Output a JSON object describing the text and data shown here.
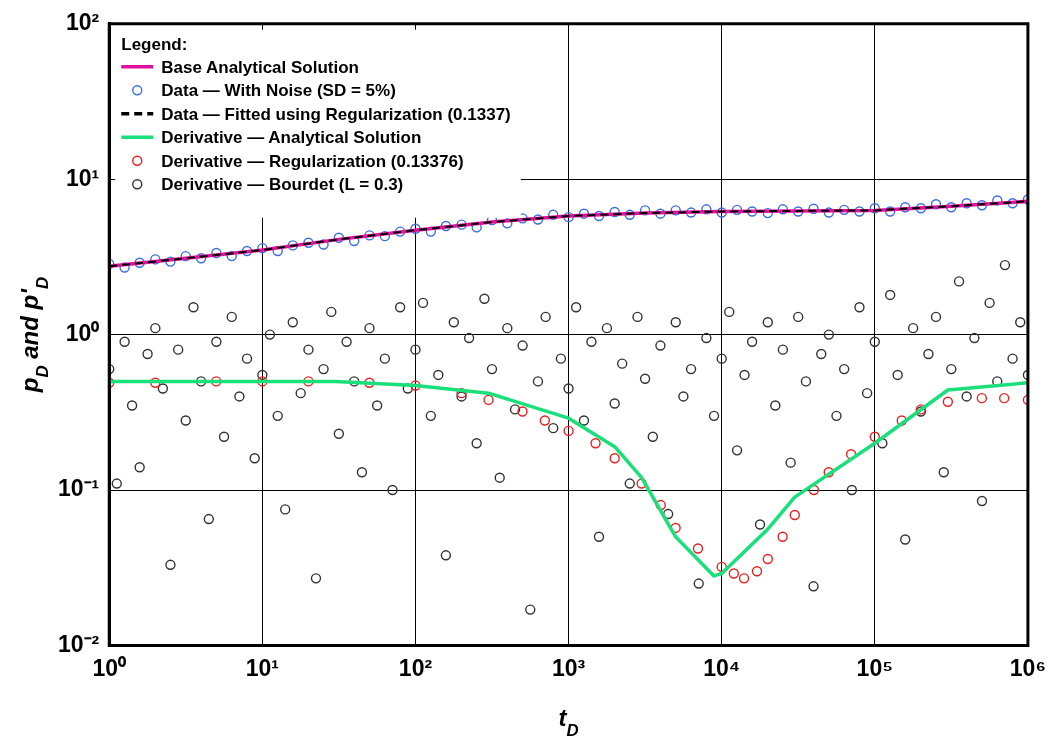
{
  "chart_data": {
    "type": "scatter",
    "xlabel": "t$_{D}$",
    "ylabel": "p$_{D}$ and p'$_{D}$",
    "legend_title": "Legend:",
    "log": "xy",
    "grid": true,
    "legend": "top left",
    "xlim": [
      1,
      1000000
    ],
    "ylim": [
      0.01,
      100
    ],
    "xticks": [
      {
        "value": 1,
        "label": "10⁰"
      },
      {
        "value": 10,
        "label": "10¹"
      },
      {
        "value": 100,
        "label": "10²"
      },
      {
        "value": 1000,
        "label": "10³"
      },
      {
        "value": 10000,
        "label": "10⁴"
      },
      {
        "value": 100000,
        "label": "10⁵"
      },
      {
        "value": 1000000,
        "label": "10⁶"
      }
    ],
    "yticks": [
      {
        "value": 0.01,
        "label": "10⁻²"
      },
      {
        "value": 0.1,
        "label": "10⁻¹"
      },
      {
        "value": 1,
        "label": "10⁰"
      },
      {
        "value": 10,
        "label": "10¹"
      },
      {
        "value": 100,
        "label": "10²"
      }
    ],
    "series": [
      {
        "name": "Base Analytical Solution",
        "type": "line",
        "color": "#e0119e",
        "x": [
          1,
          3.16,
          10,
          31.6,
          100,
          316,
          1000,
          3160,
          10000,
          31600,
          100000,
          316000,
          1000000
        ],
        "values": [
          2.75,
          3.1,
          3.5,
          4.1,
          4.7,
          5.3,
          5.8,
          6.05,
          6.2,
          6.25,
          6.3,
          6.7,
          7.2
        ]
      },
      {
        "name": "Data — With Noise (SD = 5%)",
        "marker": "circle",
        "color": "#3a6fe0",
        "x": [
          1,
          1.26,
          1.58,
          2,
          2.51,
          3.16,
          3.98,
          5.01,
          6.31,
          7.94,
          10,
          12.6,
          15.8,
          20,
          25.1,
          31.6,
          39.8,
          50.1,
          63.1,
          79.4,
          100,
          126,
          158,
          200,
          251,
          316,
          398,
          501,
          631,
          794,
          1000,
          1260,
          1580,
          2000,
          2510,
          3160,
          3980,
          5010,
          6310,
          7940,
          10000,
          12600,
          15800,
          20000,
          25100,
          31600,
          39800,
          50100,
          63100,
          79400,
          100000,
          126000,
          158000,
          200000,
          251000,
          316000,
          398000,
          501000,
          631000,
          794000,
          1000000
        ],
        "values": [
          2.85,
          2.7,
          2.9,
          3.05,
          2.95,
          3.2,
          3.1,
          3.35,
          3.2,
          3.45,
          3.6,
          3.45,
          3.75,
          3.9,
          3.8,
          4.2,
          4.0,
          4.35,
          4.3,
          4.6,
          4.8,
          4.6,
          5.0,
          5.1,
          4.9,
          5.45,
          5.2,
          5.6,
          5.5,
          5.9,
          5.7,
          6.0,
          5.8,
          6.15,
          5.9,
          6.3,
          6.0,
          6.3,
          6.1,
          6.4,
          6.1,
          6.35,
          6.2,
          6.05,
          6.4,
          6.2,
          6.45,
          6.1,
          6.35,
          6.2,
          6.5,
          6.2,
          6.6,
          6.5,
          6.9,
          6.6,
          7.0,
          6.8,
          7.3,
          7.0,
          7.4
        ]
      },
      {
        "name": "Data — Fitted using Regularization (0.1337)",
        "type": "line",
        "line_style": "dashed",
        "color": "#000000",
        "x": [
          1,
          3.16,
          10,
          31.6,
          100,
          316,
          1000,
          3160,
          10000,
          31600,
          100000,
          316000,
          1000000
        ],
        "values": [
          2.75,
          3.1,
          3.5,
          4.1,
          4.7,
          5.3,
          5.8,
          6.05,
          6.2,
          6.25,
          6.3,
          6.7,
          7.2
        ]
      },
      {
        "name": "Derivative — Analytical Solution",
        "type": "line",
        "color": "#19e07a",
        "x": [
          1,
          10,
          30,
          100,
          300,
          1000,
          2000,
          3000,
          5000,
          8900,
          10000,
          20000,
          30000,
          100000,
          300000,
          1000000
        ],
        "values": [
          0.5,
          0.5,
          0.5,
          0.47,
          0.42,
          0.29,
          0.19,
          0.12,
          0.05,
          0.028,
          0.029,
          0.056,
          0.09,
          0.2,
          0.44,
          0.49
        ]
      },
      {
        "name": "Derivative — Regularization (0.13376)",
        "marker": "circle",
        "color": "#e8211e",
        "x": [
          1,
          2,
          5,
          10,
          20,
          50,
          100,
          200,
          300,
          500,
          700,
          1000,
          1500,
          2000,
          3000,
          4000,
          5000,
          7000,
          10000,
          12000,
          14000,
          17000,
          20000,
          25000,
          30000,
          40000,
          50000,
          70000,
          100000,
          150000,
          200000,
          300000,
          500000,
          700000,
          1000000
        ],
        "values": [
          0.49,
          0.49,
          0.5,
          0.5,
          0.5,
          0.49,
          0.47,
          0.42,
          0.38,
          0.32,
          0.28,
          0.24,
          0.2,
          0.16,
          0.11,
          0.08,
          0.057,
          0.042,
          0.032,
          0.029,
          0.027,
          0.03,
          0.036,
          0.05,
          0.069,
          0.1,
          0.13,
          0.17,
          0.22,
          0.28,
          0.33,
          0.37,
          0.39,
          0.39,
          0.38
        ]
      },
      {
        "name": "Derivative — Bourdet (L = 0.3)",
        "marker": "circle",
        "color": "#333333",
        "x": [
          1,
          1.12,
          1.26,
          1.41,
          1.58,
          1.78,
          2,
          2.24,
          2.51,
          2.82,
          3.16,
          3.55,
          3.98,
          4.47,
          5.01,
          5.62,
          6.31,
          7.08,
          7.94,
          8.91,
          10,
          11.2,
          12.6,
          14.1,
          15.8,
          17.8,
          20,
          22.4,
          25.1,
          28.2,
          31.6,
          35.5,
          39.8,
          44.7,
          50.1,
          56.2,
          63.1,
          70.8,
          79.4,
          89.1,
          100,
          112,
          126,
          141,
          158,
          178,
          200,
          224,
          251,
          282,
          316,
          355,
          398,
          447,
          501,
          562,
          631,
          708,
          794,
          891,
          1000,
          1120,
          1260,
          1410,
          1580,
          1780,
          2000,
          2240,
          2510,
          2820,
          3160,
          3550,
          3980,
          4470,
          5010,
          5620,
          6310,
          7080,
          7940,
          8910,
          10000,
          11200,
          12600,
          14100,
          15800,
          17800,
          20000,
          22400,
          25100,
          28200,
          31600,
          35500,
          39800,
          44700,
          50100,
          56200,
          63100,
          70800,
          79400,
          89100,
          100000,
          112000,
          126000,
          141000,
          158000,
          178000,
          200000,
          224000,
          251000,
          282000,
          316000,
          355000,
          398000,
          447000,
          501000,
          562000,
          631000,
          708000,
          794000,
          891000,
          1000000
        ],
        "values": [
          0.6,
          0.11,
          0.9,
          0.35,
          0.14,
          0.75,
          1.1,
          0.45,
          0.033,
          0.8,
          0.28,
          1.5,
          0.5,
          0.065,
          0.9,
          0.22,
          1.3,
          0.4,
          0.7,
          0.16,
          0.55,
          1.0,
          0.3,
          0.075,
          1.2,
          0.42,
          0.8,
          0.027,
          0.6,
          1.4,
          0.23,
          0.9,
          0.5,
          0.13,
          1.1,
          0.35,
          0.7,
          0.1,
          1.5,
          0.45,
          0.8,
          1.6,
          0.3,
          0.55,
          0.038,
          1.2,
          0.4,
          0.95,
          0.2,
          1.7,
          0.6,
          0.12,
          1.1,
          0.33,
          0.85,
          0.017,
          0.5,
          1.3,
          0.25,
          0.7,
          0.45,
          1.5,
          0.28,
          0.9,
          0.05,
          1.1,
          0.36,
          0.65,
          0.11,
          1.3,
          0.52,
          0.22,
          0.85,
          0.07,
          1.2,
          0.4,
          0.6,
          0.025,
          0.95,
          0.3,
          0.7,
          1.4,
          0.18,
          0.55,
          0.9,
          0.06,
          1.2,
          0.35,
          0.8,
          0.15,
          1.3,
          0.5,
          0.024,
          0.75,
          1.0,
          0.3,
          0.6,
          0.1,
          1.5,
          0.42,
          0.9,
          0.2,
          1.8,
          0.55,
          0.048,
          1.1,
          0.32,
          0.75,
          1.3,
          0.13,
          0.6,
          2.2,
          0.4,
          0.95,
          0.085,
          1.6,
          0.5,
          2.8,
          0.7,
          1.2,
          0.55
        ]
      }
    ]
  }
}
